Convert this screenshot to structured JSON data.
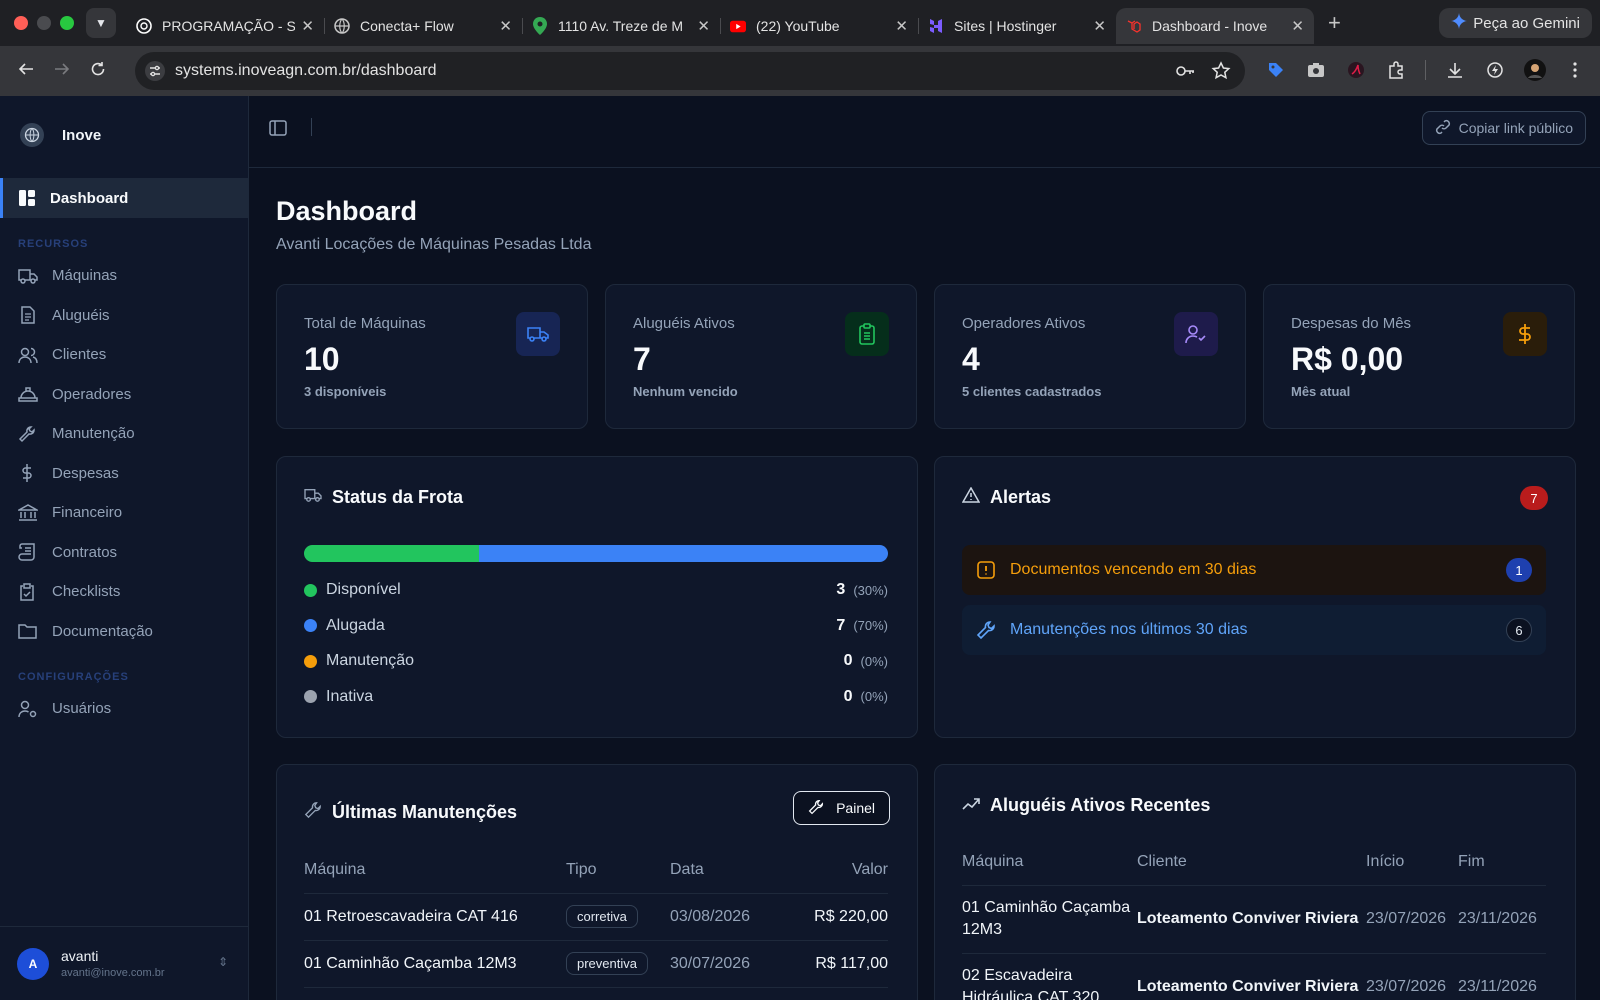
{
  "browser": {
    "tabs": [
      {
        "title": "PROGRAMAÇÃO - S",
        "icon": "chatgpt-icon"
      },
      {
        "title": "Conecta+ Flow",
        "icon": "globe-icon"
      },
      {
        "title": "1110 Av. Treze de M",
        "icon": "maps-pin-icon"
      },
      {
        "title": "(22) YouTube",
        "icon": "youtube-icon"
      },
      {
        "title": "Sites | Hostinger",
        "icon": "hostinger-icon"
      },
      {
        "title": "Dashboard - Inove",
        "icon": "laravel-icon",
        "active": true
      }
    ],
    "gemini_label": "Peça ao Gemini",
    "url": "systems.inoveagn.com.br/dashboard"
  },
  "sidebar": {
    "brand": "Inove",
    "active_item": "Dashboard",
    "section_resources": "RECURSOS",
    "resources": [
      {
        "label": "Máquinas",
        "icon": "truck-icon"
      },
      {
        "label": "Aluguéis",
        "icon": "document-icon"
      },
      {
        "label": "Clientes",
        "icon": "users-icon"
      },
      {
        "label": "Operadores",
        "icon": "hardhat-icon"
      },
      {
        "label": "Manutenção",
        "icon": "wrench-icon"
      },
      {
        "label": "Despesas",
        "icon": "dollar-icon"
      },
      {
        "label": "Financeiro",
        "icon": "bank-icon"
      },
      {
        "label": "Contratos",
        "icon": "scroll-icon"
      },
      {
        "label": "Checklists",
        "icon": "clipboard-check-icon"
      },
      {
        "label": "Documentação",
        "icon": "folder-icon"
      }
    ],
    "section_settings": "CONFIGURAÇÕES",
    "settings": [
      {
        "label": "Usuários",
        "icon": "user-cog-icon"
      }
    ],
    "user": {
      "initial": "A",
      "name": "avanti",
      "email": "avanti@inove.com.br"
    }
  },
  "header": {
    "copy_link": "Copiar link público"
  },
  "page": {
    "title": "Dashboard",
    "subtitle": "Avanti Locações de Máquinas Pesadas Ltda"
  },
  "stats": [
    {
      "label": "Total de Máquinas",
      "value": "10",
      "note": "3 disponíveis",
      "icon": "truck-icon",
      "color": "#3b82f6"
    },
    {
      "label": "Aluguéis Ativos",
      "value": "7",
      "note": "Nenhum vencido",
      "icon": "clipboard-icon",
      "color": "#22c55e"
    },
    {
      "label": "Operadores Ativos",
      "value": "4",
      "note": "5 clientes cadastrados",
      "icon": "user-check-icon",
      "color": "#a78bfa"
    },
    {
      "label": "Despesas do Mês",
      "value": "R$ 0,00",
      "note": "Mês atual",
      "icon": "dollar-icon",
      "color": "#f59e0b"
    }
  ],
  "fleet": {
    "title": "Status da Frota",
    "items": [
      {
        "label": "Disponível",
        "count": "3",
        "pct": "(30%)",
        "share": 30,
        "color": "#22c55e"
      },
      {
        "label": "Alugada",
        "count": "7",
        "pct": "(70%)",
        "share": 70,
        "color": "#3b82f6"
      },
      {
        "label": "Manutenção",
        "count": "0",
        "pct": "(0%)",
        "share": 0,
        "color": "#f59e0b"
      },
      {
        "label": "Inativa",
        "count": "0",
        "pct": "(0%)",
        "share": 0,
        "color": "#9ca3af"
      }
    ]
  },
  "alerts": {
    "title": "Alertas",
    "count": "7",
    "items": [
      {
        "label": "Documentos vencendo em 30 dias",
        "count": "1",
        "type": "warning"
      },
      {
        "label": "Manutenções nos últimos 30 dias",
        "count": "6",
        "type": "info"
      }
    ]
  },
  "maintenance": {
    "title": "Últimas Manutenções",
    "button": "Painel",
    "columns": [
      "Máquina",
      "Tipo",
      "Data",
      "Valor"
    ],
    "rows": [
      {
        "machine": "01 Retroescavadeira CAT 416",
        "type": "corretiva",
        "date": "03/08/2026",
        "value": "R$ 220,00"
      },
      {
        "machine": "01 Caminhão Caçamba 12M3",
        "type": "preventiva",
        "date": "30/07/2026",
        "value": "R$ 117,00"
      }
    ]
  },
  "rentals": {
    "title": "Aluguéis Ativos Recentes",
    "columns": [
      "Máquina",
      "Cliente",
      "Início",
      "Fim"
    ],
    "rows": [
      {
        "machine": "01 Caminhão Caçamba 12M3",
        "client": "Loteamento Conviver Riviera",
        "start": "23/07/2026",
        "end": "23/11/2026"
      },
      {
        "machine": "02 Escavadeira Hidráulica CAT 320",
        "client": "Loteamento Conviver Riviera",
        "start": "23/07/2026",
        "end": "23/11/2026"
      }
    ]
  }
}
